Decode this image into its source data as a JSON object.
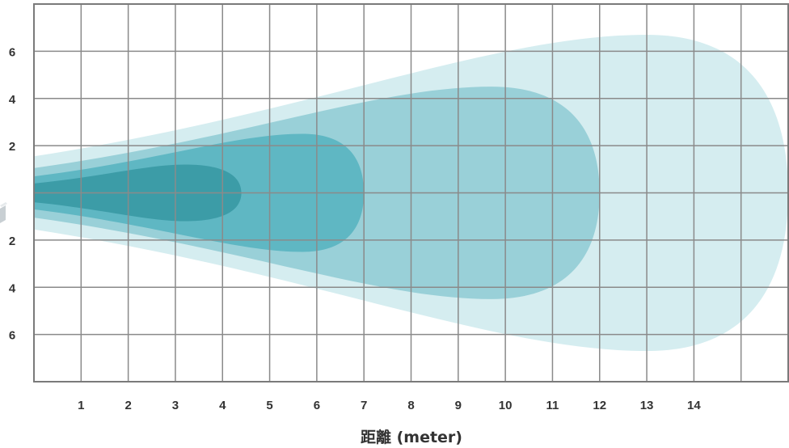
{
  "chart_data": {
    "type": "area",
    "title": "",
    "xlabel": "距離 (meter)",
    "ylabel": "",
    "x_ticks": [
      "1",
      "2",
      "3",
      "4",
      "5",
      "6",
      "7",
      "8",
      "9",
      "10",
      "11",
      "12",
      "13",
      "14"
    ],
    "y_ticks_upper": [
      "6",
      "4",
      "2"
    ],
    "y_ticks_lower": [
      "2",
      "4",
      "6"
    ],
    "xlim": [
      0,
      16
    ],
    "ylim": [
      -8,
      8
    ],
    "grid": true,
    "colors": [
      "#d3ecef",
      "#96cfd6",
      "#5cb5c2",
      "#3a9aa5"
    ],
    "series": [
      {
        "max_range": 16.0,
        "max_half_width": 6.7,
        "peak_at": 13.0
      },
      {
        "max_range": 12.0,
        "max_half_width": 4.5,
        "peak_at": 9.7
      },
      {
        "max_range": 7.0,
        "max_half_width": 2.5,
        "peak_at": 5.7
      },
      {
        "max_range": 4.4,
        "max_half_width": 1.2,
        "peak_at": 3.2
      }
    ]
  }
}
